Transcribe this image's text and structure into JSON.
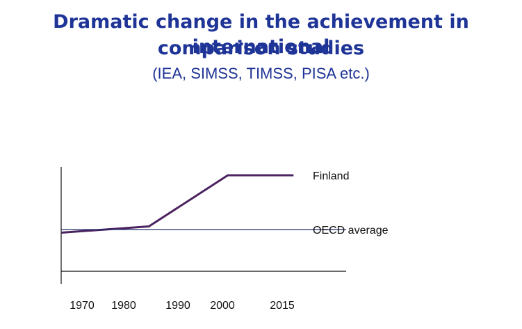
{
  "title_line1": "Dramatic change in the achievement in international",
  "title_line2": "comparison studies",
  "subtitle": "(IEA, SIMSS, TIMSS, PISA etc.)",
  "colors": {
    "title": "#1f3497",
    "finland_line": "#4a2360",
    "oecd_line": "#1f2a6b",
    "axis": "#111111"
  },
  "chart_data": {
    "type": "line",
    "title": "Dramatic change in the achievement in international comparison studies",
    "xlabel": "",
    "ylabel": "",
    "x_ticks": [
      {
        "label": "1970",
        "value": 1970
      },
      {
        "label": "1980",
        "value": 1980
      },
      {
        "label": "1990",
        "value": 1990
      },
      {
        "label": "2000",
        "value": 2000
      },
      {
        "label": "2015",
        "value": 2015
      }
    ],
    "xlim": [
      1965,
      2030
    ],
    "ylim": [
      0,
      100
    ],
    "grid": false,
    "series": [
      {
        "name": "Finland",
        "points": [
          {
            "x": 1965,
            "y": 37
          },
          {
            "x": 1985,
            "y": 43
          },
          {
            "x": 2003,
            "y": 92
          },
          {
            "x": 2018,
            "y": 92
          }
        ]
      },
      {
        "name": "OECD average",
        "points": [
          {
            "x": 1965,
            "y": 40
          },
          {
            "x": 2030,
            "y": 40
          }
        ]
      }
    ]
  }
}
